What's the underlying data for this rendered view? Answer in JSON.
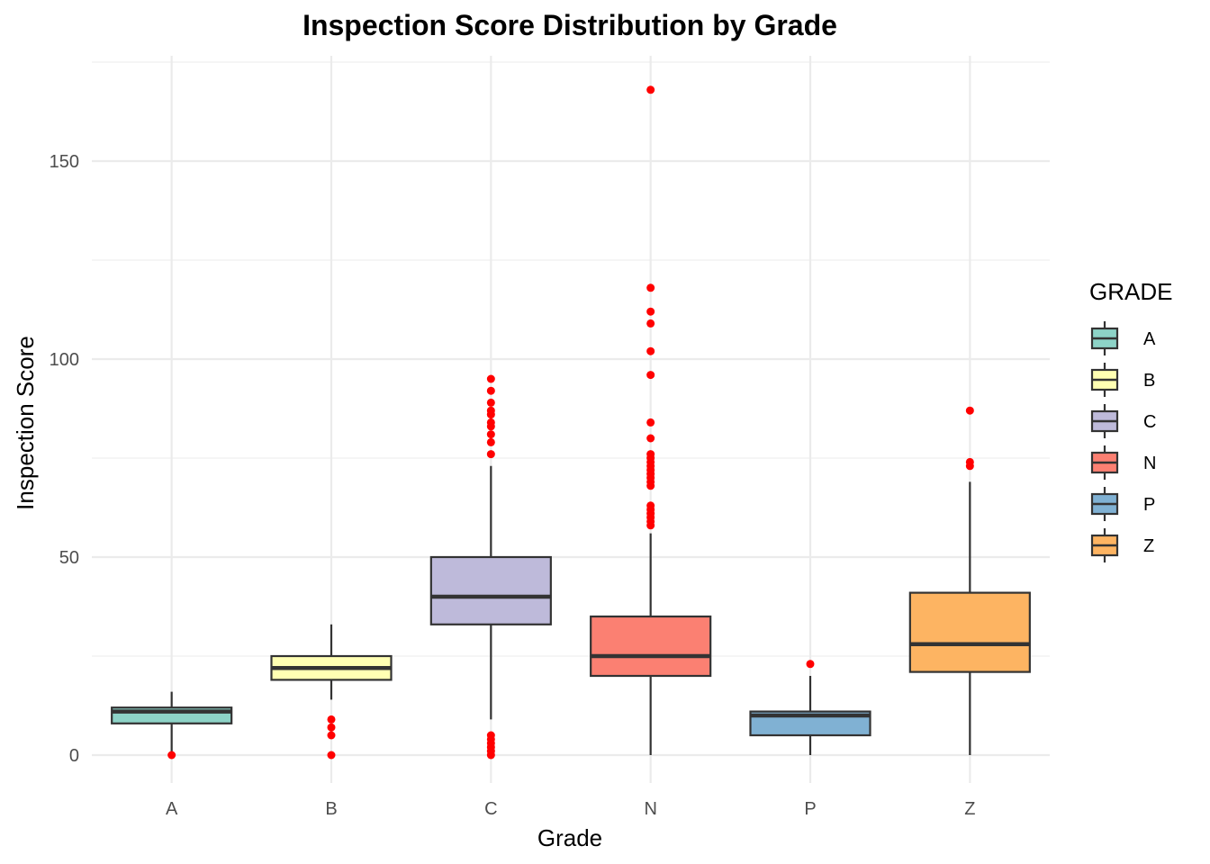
{
  "chart_data": {
    "type": "boxplot",
    "title": "Inspection Score Distribution by Grade",
    "xlabel": "Grade",
    "ylabel": "Inspection Score",
    "ylim": [
      -7,
      175
    ],
    "yticks": [
      0,
      50,
      100,
      150
    ],
    "grid": true,
    "legend": {
      "title": "GRADE",
      "position": "right"
    },
    "outlier_color": "#ff0000",
    "box_edge_color": "#333333",
    "groups": [
      {
        "name": "A",
        "color": "#8dd3c7",
        "whisker_low": 0,
        "q1": 8,
        "median": 11,
        "q3": 12,
        "whisker_high": 16,
        "outliers": [
          0
        ]
      },
      {
        "name": "B",
        "color": "#ffffb3",
        "whisker_low": 14,
        "q1": 19,
        "median": 22,
        "q3": 25,
        "whisker_high": 33,
        "outliers": [
          0,
          5,
          7,
          9
        ]
      },
      {
        "name": "C",
        "color": "#bebada",
        "whisker_low": 9,
        "q1": 33,
        "median": 40,
        "q3": 50,
        "whisker_high": 73,
        "outliers": [
          0,
          1,
          2,
          3,
          4,
          5,
          76,
          79,
          81,
          83,
          84,
          86,
          87,
          89,
          92,
          95
        ]
      },
      {
        "name": "N",
        "color": "#fb8072",
        "whisker_low": 0,
        "q1": 20,
        "median": 25,
        "q3": 35,
        "whisker_high": 56,
        "outliers": [
          58,
          59,
          60,
          61,
          62,
          63,
          68,
          69,
          70,
          71,
          72,
          73,
          74,
          75,
          76,
          80,
          84,
          96,
          102,
          109,
          112,
          118,
          168
        ]
      },
      {
        "name": "P",
        "color": "#80b1d3",
        "whisker_low": 0,
        "q1": 5,
        "median": 10,
        "q3": 11,
        "whisker_high": 20,
        "outliers": [
          23
        ]
      },
      {
        "name": "Z",
        "color": "#fdb462",
        "whisker_low": 0,
        "q1": 21,
        "median": 28,
        "q3": 41,
        "whisker_high": 69,
        "outliers": [
          73,
          74,
          87
        ]
      }
    ]
  }
}
